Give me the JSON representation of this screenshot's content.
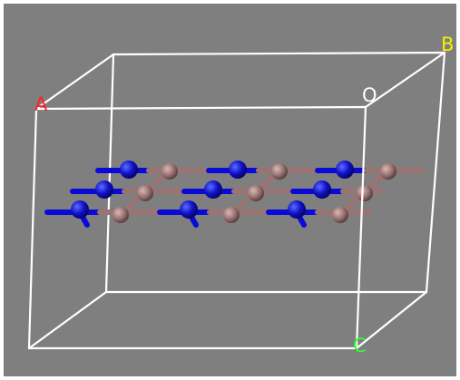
{
  "labels": {
    "a": "A",
    "b": "B",
    "o": "O",
    "c": "C"
  }
}
